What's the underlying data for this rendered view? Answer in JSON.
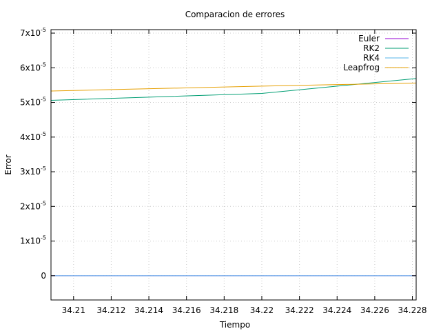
{
  "chart_data": {
    "type": "line",
    "title": "Comparacion de errores",
    "xlabel": "Tiempo",
    "ylabel": "Error",
    "xlim": [
      34.2088,
      34.2282
    ],
    "ylim": [
      -7e-06,
      7.1e-05
    ],
    "grid": true,
    "legend_position": "top-right",
    "xticks": [
      {
        "value": 34.21,
        "label": "34.21"
      },
      {
        "value": 34.212,
        "label": "34.212"
      },
      {
        "value": 34.214,
        "label": "34.214"
      },
      {
        "value": 34.216,
        "label": "34.216"
      },
      {
        "value": 34.218,
        "label": "34.218"
      },
      {
        "value": 34.22,
        "label": "34.22"
      },
      {
        "value": 34.222,
        "label": "34.222"
      },
      {
        "value": 34.224,
        "label": "34.224"
      },
      {
        "value": 34.226,
        "label": "34.226"
      },
      {
        "value": 34.228,
        "label": "34.228"
      }
    ],
    "yticks": [
      {
        "value": 0,
        "mantissa": "0",
        "exp": ""
      },
      {
        "value": 1e-05,
        "mantissa": "1x10",
        "exp": "-5"
      },
      {
        "value": 2e-05,
        "mantissa": "2x10",
        "exp": "-5"
      },
      {
        "value": 3e-05,
        "mantissa": "3x10",
        "exp": "-5"
      },
      {
        "value": 4e-05,
        "mantissa": "4x10",
        "exp": "-5"
      },
      {
        "value": 5e-05,
        "mantissa": "5x10",
        "exp": "-5"
      },
      {
        "value": 6e-05,
        "mantissa": "6x10",
        "exp": "-5"
      },
      {
        "value": 7e-05,
        "mantissa": "7x10",
        "exp": "-5"
      }
    ],
    "series": [
      {
        "name": "Euler",
        "color": "#9400d3",
        "points": [
          [
            34.2088,
            0
          ],
          [
            34.2282,
            0
          ]
        ]
      },
      {
        "name": "RK2",
        "color": "#009e73",
        "points": [
          [
            34.2088,
            5.06e-05
          ],
          [
            34.22,
            5.26e-05
          ],
          [
            34.2282,
            5.69e-05
          ]
        ]
      },
      {
        "name": "RK4",
        "color": "#56b4e9",
        "points": [
          [
            34.2088,
            0
          ],
          [
            34.2282,
            0
          ]
        ]
      },
      {
        "name": "Leapfrog",
        "color": "#e69f00",
        "points": [
          [
            34.2088,
            5.33e-05
          ],
          [
            34.22,
            5.47e-05
          ],
          [
            34.2282,
            5.56e-05
          ]
        ]
      }
    ]
  }
}
